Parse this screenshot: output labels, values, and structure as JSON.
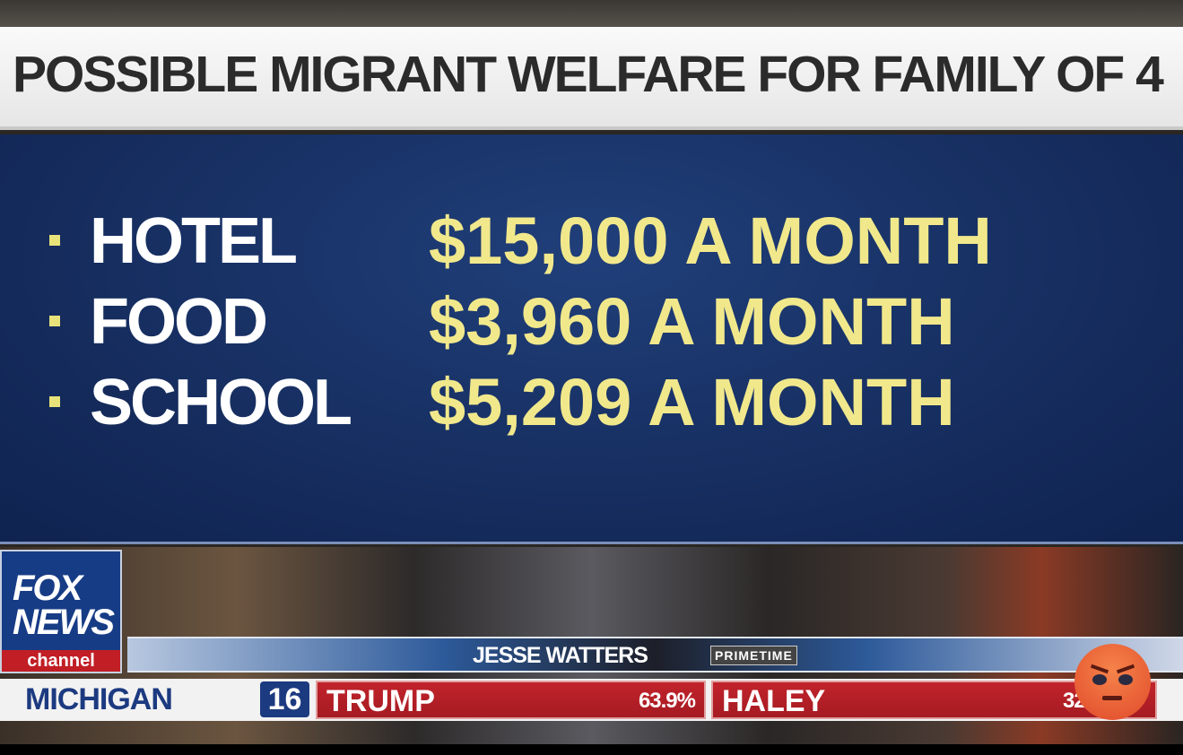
{
  "title": "POSSIBLE MIGRANT WELFARE FOR FAMILY OF 4",
  "items": [
    {
      "label": "HOTEL",
      "value": "$15,000 A MONTH"
    },
    {
      "label": "FOOD",
      "value": "$3,960 A MONTH"
    },
    {
      "label": "SCHOOL",
      "value": "$5,209 A MONTH"
    }
  ],
  "logo": {
    "line1": "FOX",
    "line2": "NEWS",
    "channel": "channel"
  },
  "show": {
    "name": "JESSE WATTERS",
    "tag": "PRIMETIME"
  },
  "ticker": {
    "state": "MICHIGAN",
    "delegates": "16",
    "candidates": [
      {
        "name": "TRUMP",
        "pct": "63.9%"
      },
      {
        "name": "HALEY",
        "pct": "32.2%"
      }
    ]
  },
  "colors": {
    "panel": "#142a5a",
    "value": "#f1e88c",
    "ticker_red": "#b8202a",
    "fox_blue": "#173c86"
  },
  "overlay": {
    "icon": "angry-face-emoji"
  }
}
